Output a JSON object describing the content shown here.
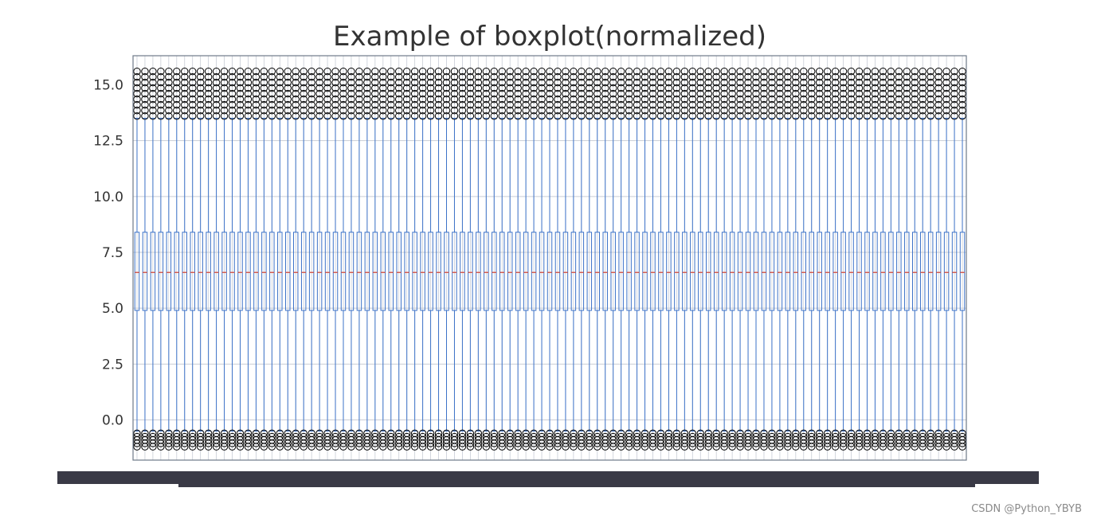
{
  "chart_data": {
    "type": "boxplot",
    "title": "Example of boxplot(normalized)",
    "xlabel": "",
    "ylabel": "",
    "ylim": [
      -1.8,
      16.3
    ],
    "yticks": [
      0.0,
      2.5,
      5.0,
      7.5,
      10.0,
      12.5,
      15.0
    ],
    "ytick_labels": [
      "0.0",
      "2.5",
      "5.0",
      "7.5",
      "10.0",
      "12.5",
      "15.0"
    ],
    "grid": true,
    "box_count": 105,
    "box_stats": {
      "whisker_low": -0.5,
      "q1": 4.9,
      "median": 6.6,
      "q3": 8.4,
      "whisker_high": 13.5
    },
    "outliers_low": [
      -0.6,
      -0.75,
      -0.9,
      -1.05,
      -1.2
    ],
    "outliers_high": [
      13.6,
      13.85,
      14.1,
      14.35,
      14.6,
      14.85,
      15.1,
      15.35,
      15.6
    ],
    "colors": {
      "box": "#3c72c8",
      "median": "#d1493b",
      "outlier": "#000000",
      "grid": "#c8cdd6",
      "axes_edge": "#6f7a88",
      "text": "#333333"
    }
  },
  "watermark": "CSDN @Python_YBYB"
}
